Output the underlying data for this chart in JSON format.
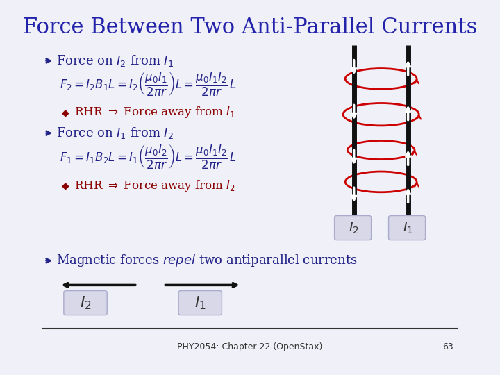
{
  "title": "Force Between Two Anti-Parallel Currents",
  "title_color": "#2222aa",
  "title_fontsize": 22,
  "bg_color": "#f0f0f8",
  "text_color": "#222288",
  "formula_color": "#222288",
  "bullet_color": "#8B0000",
  "wire_color": "#111111",
  "loop_color": "#cc0000",
  "label_color": "#333333",
  "arrow_color": "#111111",
  "footer_text": "PHY2054: Chapter 22 (OpenStax)",
  "footer_page": "63"
}
